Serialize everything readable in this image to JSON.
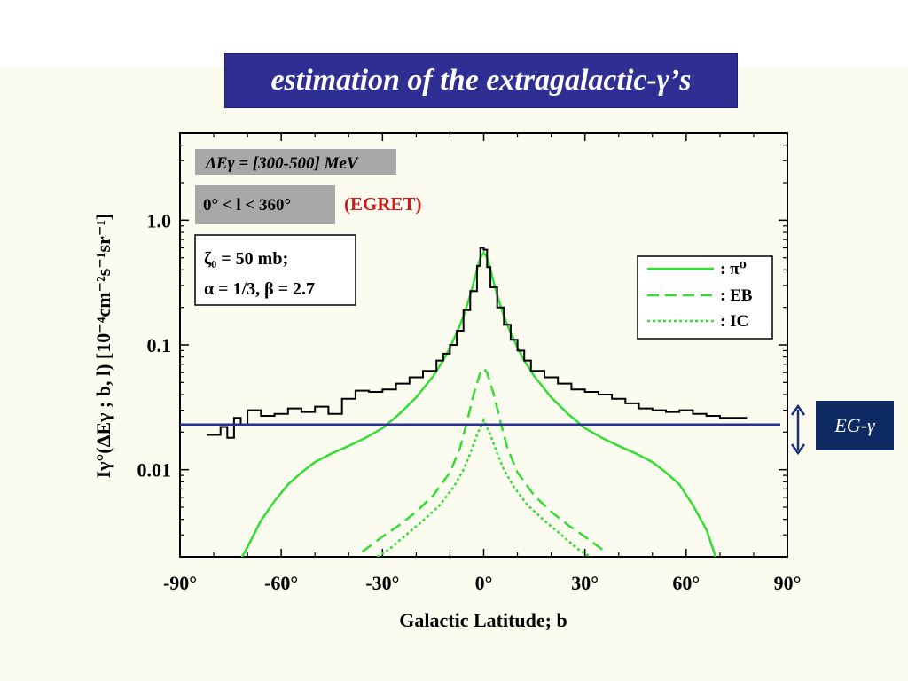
{
  "slide": {
    "title": "estimation of the extragalactic-γ’s",
    "eg_label": "EG-γ"
  },
  "chart_data": {
    "type": "line",
    "xlabel": "Galactic Latitude; b",
    "ylabel": "Iγ°(ΔEγ ; b, l) [10⁻⁴cm⁻²s⁻¹sr⁻¹]",
    "xlim": [
      -90,
      90
    ],
    "ylim": [
      0.002,
      5
    ],
    "yscale": "log",
    "x_ticks": [
      "-90°",
      "-60°",
      "-30°",
      "0°",
      "30°",
      "60°",
      "90°"
    ],
    "x_tick_values": [
      -90,
      -60,
      -30,
      0,
      30,
      60,
      90
    ],
    "y_ticks": [
      "0.01",
      "0.1",
      "1.0"
    ],
    "y_tick_values": [
      0.01,
      0.1,
      1.0
    ],
    "annotations": {
      "energy_band": "ΔEγ = [300-500] MeV",
      "longitude_range": "0° < l < 360°",
      "data_source": "(EGRET)",
      "param_line1": "ζ₀ = 50 mb;",
      "param_line2": "α = 1/3,  β = 2.7"
    },
    "legend_position": "top-right",
    "colors": {
      "egret": "#000000",
      "model": "#33dd33",
      "extragalactic": "#2b2f8f",
      "source_label": "#d11b1b"
    },
    "series": [
      {
        "name": ": π⁰",
        "style": "solid",
        "x": [
          -72,
          -70,
          -66,
          -62,
          -58,
          -54,
          -50,
          -45,
          -40,
          -35,
          -30,
          -25,
          -20,
          -15,
          -12,
          -10,
          -8,
          -6,
          -4,
          -2,
          -1,
          0,
          1,
          2,
          4,
          6,
          8,
          10,
          12,
          15,
          20,
          25,
          30,
          35,
          40,
          45,
          50,
          54,
          58,
          62,
          66,
          69
        ],
        "y": [
          0.0019,
          0.0024,
          0.0039,
          0.0056,
          0.0076,
          0.0095,
          0.0115,
          0.0135,
          0.0155,
          0.018,
          0.0215,
          0.028,
          0.038,
          0.056,
          0.075,
          0.095,
          0.125,
          0.17,
          0.25,
          0.4,
          0.5,
          0.55,
          0.5,
          0.4,
          0.25,
          0.17,
          0.125,
          0.095,
          0.075,
          0.056,
          0.038,
          0.028,
          0.0215,
          0.018,
          0.0155,
          0.0135,
          0.0115,
          0.0095,
          0.0076,
          0.0052,
          0.0033,
          0.0019
        ]
      },
      {
        "name": ": EB",
        "style": "dashed",
        "x": [
          -36,
          -30,
          -25,
          -20,
          -15,
          -10,
          -7,
          -5,
          -3,
          -1,
          0,
          1,
          3,
          5,
          7,
          10,
          15,
          20,
          25,
          30,
          36
        ],
        "y": [
          0.0022,
          0.0029,
          0.0036,
          0.0046,
          0.0062,
          0.0095,
          0.015,
          0.024,
          0.04,
          0.06,
          0.065,
          0.06,
          0.04,
          0.024,
          0.015,
          0.0095,
          0.0062,
          0.0046,
          0.0036,
          0.0029,
          0.0022
        ]
      },
      {
        "name": ": IC",
        "style": "dotted",
        "x": [
          -33,
          -28,
          -23,
          -18,
          -13,
          -9,
          -6,
          -4,
          -2,
          0,
          2,
          4,
          6,
          9,
          13,
          18,
          23,
          28,
          33
        ],
        "y": [
          0.0019,
          0.0023,
          0.003,
          0.0039,
          0.0052,
          0.0072,
          0.01,
          0.0135,
          0.019,
          0.025,
          0.019,
          0.0135,
          0.01,
          0.0072,
          0.0052,
          0.0039,
          0.003,
          0.0023,
          0.0019
        ]
      }
    ],
    "egret_data": {
      "bin_edges": [
        -82,
        -78,
        -76,
        -74,
        -72,
        -70,
        -66,
        -62,
        -58,
        -54,
        -50,
        -46,
        -42,
        -38,
        -34,
        -30,
        -26,
        -22,
        -18,
        -14,
        -12,
        -10,
        -8,
        -6,
        -4,
        -2,
        -1,
        0,
        1,
        2,
        4,
        6,
        8,
        10,
        12,
        14,
        18,
        22,
        26,
        30,
        34,
        38,
        42,
        46,
        50,
        54,
        58,
        62,
        66,
        70,
        74,
        78
      ],
      "values": [
        0.019,
        0.022,
        0.018,
        0.026,
        0.023,
        0.03,
        0.027,
        0.028,
        0.031,
        0.029,
        0.032,
        0.028,
        0.037,
        0.043,
        0.042,
        0.044,
        0.049,
        0.055,
        0.062,
        0.075,
        0.085,
        0.1,
        0.13,
        0.19,
        0.27,
        0.43,
        0.6,
        0.58,
        0.42,
        0.29,
        0.2,
        0.145,
        0.11,
        0.09,
        0.075,
        0.062,
        0.055,
        0.049,
        0.044,
        0.042,
        0.04,
        0.037,
        0.034,
        0.031,
        0.03,
        0.029,
        0.03,
        0.028,
        0.027,
        0.026,
        0.026
      ]
    },
    "extragalactic_level": 0.023
  }
}
